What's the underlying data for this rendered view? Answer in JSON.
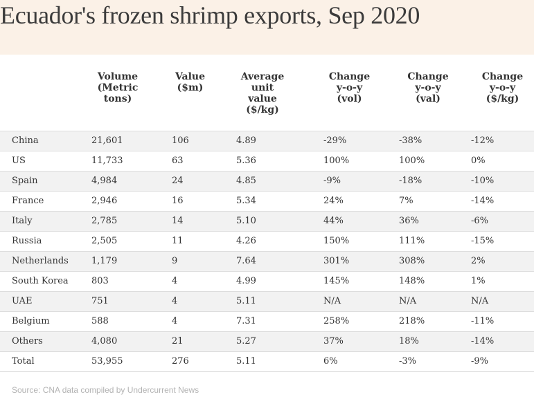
{
  "colors": {
    "header_background": "#fbf1e7",
    "title_text": "#3b3b3b",
    "stripe_row": "#f2f2f2",
    "row_divider": "#dddddd",
    "source_text": "#b3b3b3"
  },
  "chart_data": {
    "type": "table",
    "title": "Ecuador's frozen shrimp exports, Sep 2020",
    "columns": [
      {
        "key": "country",
        "label_lines": [
          ""
        ]
      },
      {
        "key": "volume",
        "label_lines": [
          "Volume",
          "(Metric",
          "tons)"
        ]
      },
      {
        "key": "value",
        "label_lines": [
          "Value",
          "($m)"
        ]
      },
      {
        "key": "avg_unit_value",
        "label_lines": [
          "Average",
          "unit",
          "value",
          "($/kg)"
        ]
      },
      {
        "key": "chg_vol",
        "label_lines": [
          "Change",
          "y-o-y",
          "(vol)"
        ]
      },
      {
        "key": "chg_val",
        "label_lines": [
          "Change",
          "y-o-y",
          "(val)"
        ]
      },
      {
        "key": "chg_price",
        "label_lines": [
          "Change",
          "y-o-y",
          "($/kg)"
        ]
      }
    ],
    "rows": [
      [
        "China",
        "21,601",
        "106",
        "4.89",
        "-29%",
        "-38%",
        "-12%"
      ],
      [
        "US",
        "11,733",
        "63",
        "5.36",
        "100%",
        "100%",
        "0%"
      ],
      [
        "Spain",
        "4,984",
        "24",
        "4.85",
        "-9%",
        "-18%",
        "-10%"
      ],
      [
        "France",
        "2,946",
        "16",
        "5.34",
        "24%",
        "7%",
        "-14%"
      ],
      [
        "Italy",
        "2,785",
        "14",
        "5.10",
        "44%",
        "36%",
        "-6%"
      ],
      [
        "Russia",
        "2,505",
        "11",
        "4.26",
        "150%",
        "111%",
        "-15%"
      ],
      [
        "Netherlands",
        "1,179",
        "9",
        "7.64",
        "301%",
        "308%",
        "2%"
      ],
      [
        "South Korea",
        "803",
        "4",
        "4.99",
        "145%",
        "148%",
        "1%"
      ],
      [
        "UAE",
        "751",
        "4",
        "5.11",
        "N/A",
        "N/A",
        "N/A"
      ],
      [
        "Belgium",
        "588",
        "4",
        "7.31",
        "258%",
        "218%",
        "-11%"
      ],
      [
        "Others",
        "4,080",
        "21",
        "5.27",
        "37%",
        "18%",
        "-14%"
      ],
      [
        "Total",
        "53,955",
        "276",
        "5.11",
        "6%",
        "-3%",
        "-9%"
      ]
    ],
    "source": "Source: CNA data compiled by Undercurrent News"
  }
}
